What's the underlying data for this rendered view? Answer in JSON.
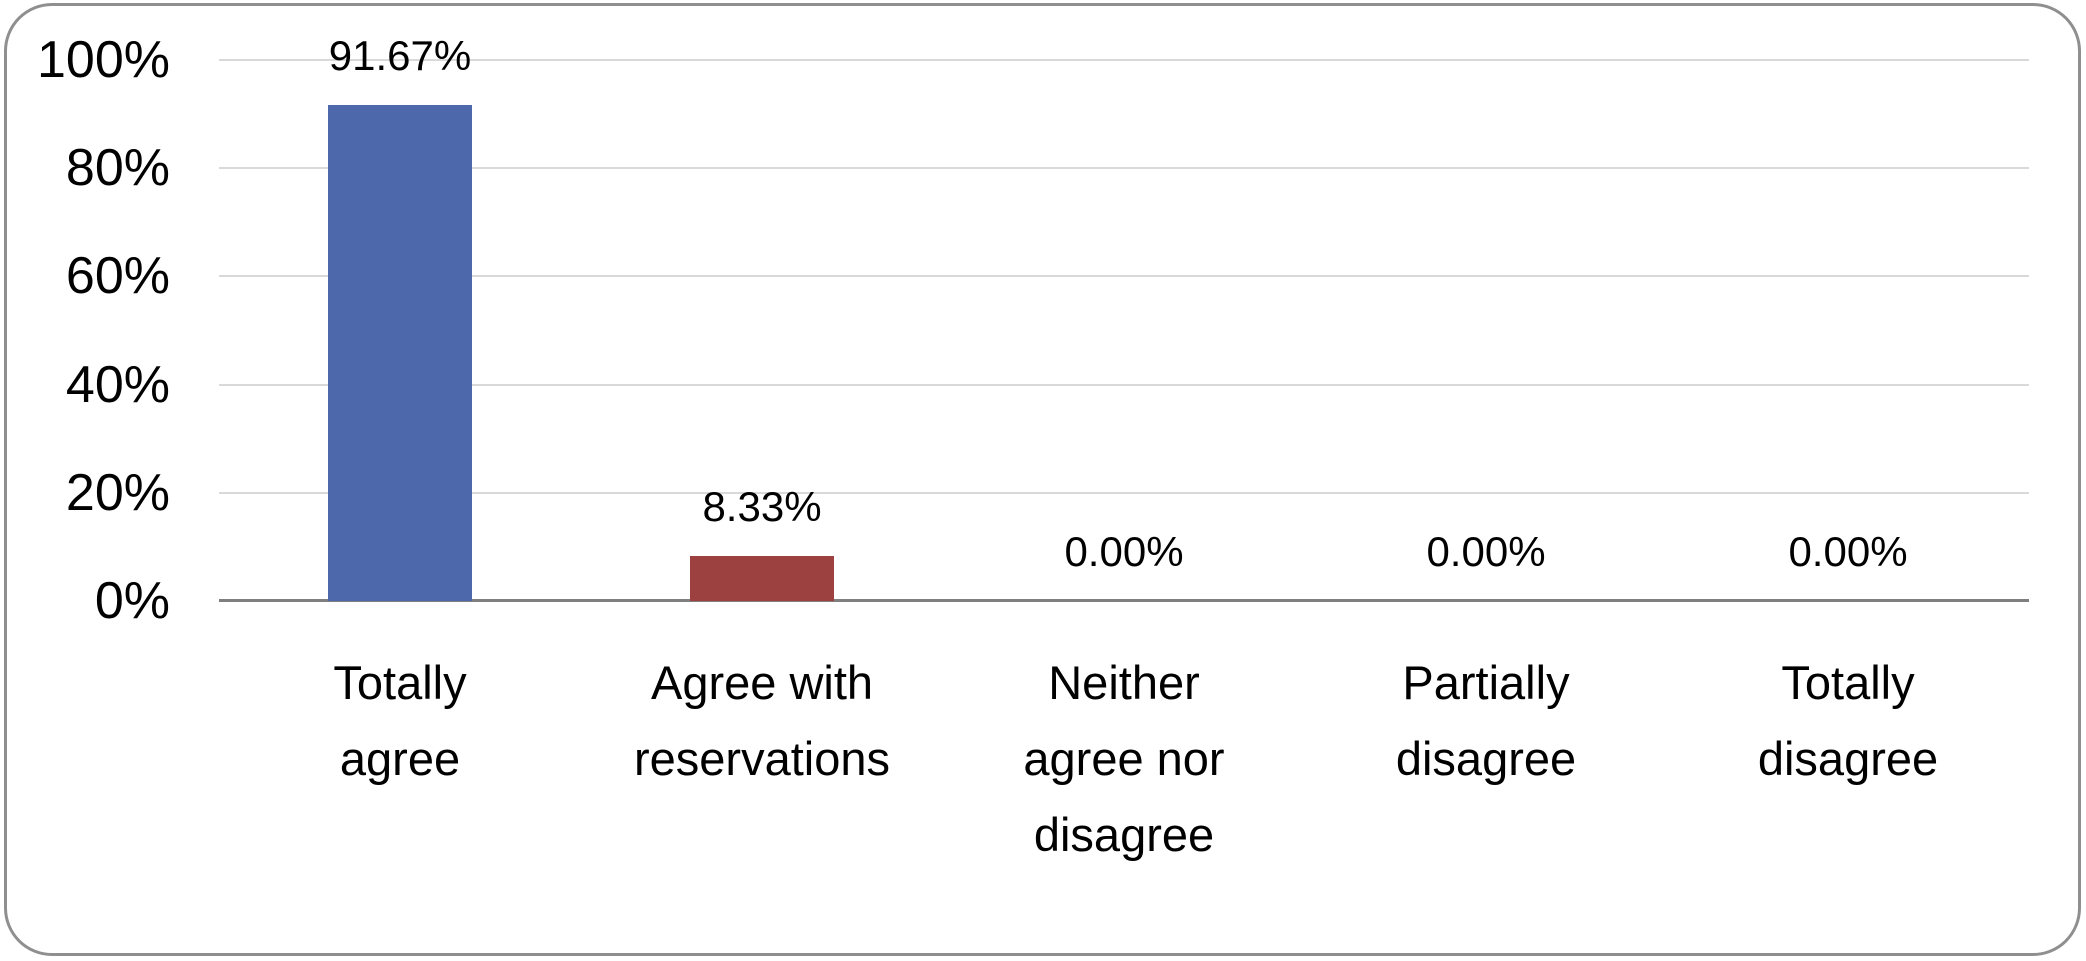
{
  "chart_data": {
    "type": "bar",
    "title": "",
    "xlabel": "",
    "ylabel": "",
    "categories": [
      "Totally agree",
      "Agree with reservations",
      "Neither agree nor disagree",
      "Partially disagree",
      "Totally disagree"
    ],
    "category_display": [
      "Totally\nagree",
      "Agree with\nreservations",
      "Neither\nagree nor\ndisagree",
      "Partially\ndisagree",
      "Totally\ndisagree"
    ],
    "values": [
      91.67,
      8.33,
      0,
      0,
      0
    ],
    "data_labels": [
      "91.67%",
      "8.33%",
      "0.00%",
      "0.00%",
      "0.00%"
    ],
    "bar_colors": [
      "#4e69ab",
      "#9c413f",
      null,
      null,
      null
    ],
    "y_axis": {
      "min": 0,
      "max": 100,
      "step": 20,
      "ticks": [
        "0%",
        "20%",
        "40%",
        "60%",
        "80%",
        "100%"
      ],
      "grid": true
    },
    "legend": null
  },
  "colors": {
    "bar_blue": "#4e69ab",
    "bar_red": "#9c413f",
    "gridline": "#d9d9d9",
    "axis_line": "#7f7f7f",
    "frame_border": "#8f8f8f",
    "background": "#ffffff",
    "text": "#000000"
  }
}
